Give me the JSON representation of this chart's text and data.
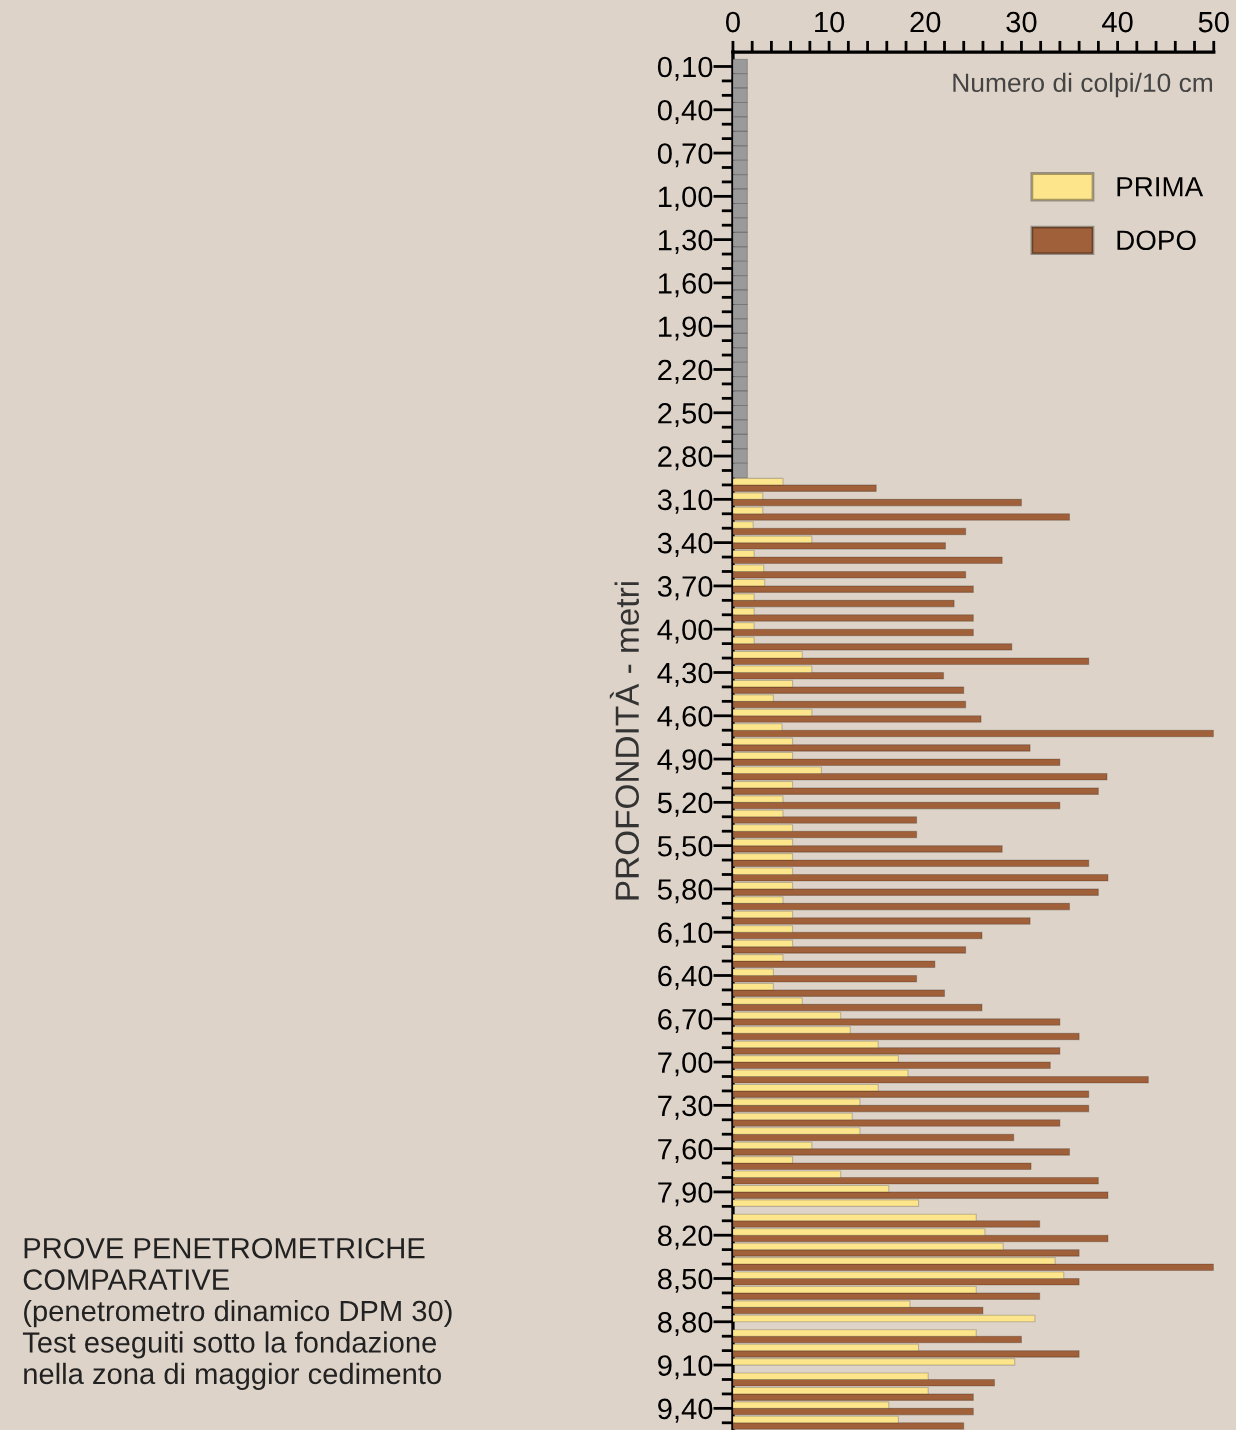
{
  "chart_data": {
    "type": "bar",
    "orientation": "horizontal",
    "xlabel": "Numero di colpi/10 cm",
    "ylabel": "PROFONDITÀ - metri",
    "categories": [
      "0,10",
      null,
      null,
      "0,40",
      null,
      null,
      "0,70",
      null,
      null,
      "1,00",
      null,
      null,
      "1,30",
      null,
      null,
      "1,60",
      null,
      null,
      "1,90",
      null,
      null,
      "2,20",
      null,
      null,
      "2,50",
      null,
      null,
      "2,80",
      null,
      null,
      "3,10",
      null,
      null,
      "3,40",
      null,
      null,
      "3,70",
      null,
      null,
      "4,00",
      null,
      null,
      "4,30",
      null,
      null,
      "4,60",
      null,
      null,
      "4,90",
      null,
      null,
      "5,20",
      null,
      null,
      "5,50",
      null,
      null,
      "5,80",
      null,
      null,
      "6,10",
      null,
      null,
      "6,40",
      null,
      null,
      "6,70",
      null,
      null,
      "7,00",
      null,
      null,
      "7,30",
      null,
      null,
      "7,60",
      null,
      null,
      "7,90",
      null,
      null,
      "8,20",
      null,
      null,
      "8,50",
      null,
      null,
      "8,80",
      null,
      null,
      "9,10",
      null,
      null,
      "9,40",
      null
    ],
    "series": [
      {
        "name": "PRIMA",
        "color": "#fde58c",
        "values": [
          null,
          null,
          null,
          null,
          null,
          null,
          null,
          null,
          null,
          null,
          null,
          null,
          null,
          null,
          null,
          null,
          null,
          null,
          null,
          null,
          null,
          null,
          null,
          null,
          null,
          null,
          null,
          null,
          null,
          5.2,
          3.1,
          3.1,
          2.1,
          8.2,
          2.2,
          3.2,
          3.3,
          2.2,
          2.2,
          2.2,
          2.2,
          7.2,
          8.2,
          6.2,
          4.2,
          8.2,
          5.1,
          6.2,
          6.2,
          9.2,
          6.2,
          5.2,
          5.2,
          6.2,
          6.2,
          6.2,
          6.2,
          6.2,
          5.2,
          6.2,
          6.2,
          6.2,
          5.2,
          4.2,
          4.2,
          7.2,
          11.2,
          12.2,
          15.1,
          17.2,
          18.2,
          15.1,
          13.2,
          12.4,
          13.2,
          8.2,
          6.2,
          11.2,
          16.2,
          19.3,
          25.3,
          26.2,
          28.1,
          33.5,
          34.4,
          25.3,
          18.4,
          31.4,
          25.3,
          19.3,
          29.3,
          20.3,
          20.3,
          16.2,
          17.2
        ]
      },
      {
        "name": "DOPO",
        "color": "#a0603a",
        "values": [
          null,
          null,
          null,
          null,
          null,
          null,
          null,
          null,
          null,
          null,
          null,
          null,
          null,
          null,
          null,
          null,
          null,
          null,
          null,
          null,
          null,
          null,
          null,
          null,
          null,
          null,
          null,
          null,
          null,
          14.9,
          30,
          35,
          24.2,
          22.1,
          28,
          24.2,
          25,
          23,
          25,
          25,
          29,
          37,
          21.9,
          24,
          24.2,
          25.8,
          50,
          30.9,
          34,
          38.9,
          38,
          34,
          19.1,
          19.1,
          28,
          37,
          39,
          38,
          35,
          30.9,
          25.9,
          24.2,
          21,
          19.1,
          22,
          25.9,
          34,
          36,
          34,
          33,
          43.2,
          37,
          37,
          34,
          29.2,
          35,
          31,
          38,
          39,
          null,
          31.9,
          39,
          36,
          50,
          36,
          31.9,
          26,
          null,
          30,
          36,
          null,
          27.2,
          25,
          25,
          24
        ]
      },
      {
        "color": "#9a9a9a",
        "values": [
          1.5,
          1.5,
          1.5,
          1.5,
          1.5,
          1.5,
          1.5,
          1.5,
          1.5,
          1.5,
          1.5,
          1.5,
          1.5,
          1.5,
          1.5,
          1.5,
          1.5,
          1.5,
          1.5,
          1.5,
          1.5,
          1.5,
          1.5,
          1.5,
          1.5,
          1.5,
          1.5,
          1.5,
          1.5,
          null,
          null,
          null,
          null,
          null,
          null,
          null,
          null,
          null,
          null,
          null,
          null,
          null,
          null,
          null,
          null,
          null,
          null,
          null,
          null,
          null,
          null,
          null,
          null,
          null,
          null,
          null,
          null,
          null,
          null,
          null,
          null,
          null,
          null,
          null,
          null,
          null,
          null,
          null,
          null,
          null,
          null,
          null,
          null,
          null,
          null,
          null,
          null,
          null,
          null,
          null,
          null,
          null,
          null,
          null,
          null,
          null,
          null,
          null,
          null,
          null,
          null,
          null,
          null,
          null,
          null
        ]
      }
    ],
    "xlim": [
      0,
      50
    ],
    "xticks": [
      0,
      {
        "value": 2,
        "label": null
      },
      {
        "value": 4,
        "label": null
      },
      {
        "value": 6,
        "label": null
      },
      {
        "value": 8,
        "label": null
      },
      10,
      {
        "value": 12,
        "label": null
      },
      {
        "value": 14,
        "label": null
      },
      {
        "value": 16,
        "label": null
      },
      {
        "value": 18,
        "label": null
      },
      20,
      {
        "value": 22,
        "label": null
      },
      {
        "value": 24,
        "label": null
      },
      {
        "value": 26,
        "label": null
      },
      {
        "value": 28,
        "label": null
      },
      30,
      {
        "value": 32,
        "label": null
      },
      {
        "value": 34,
        "label": null
      },
      {
        "value": 36,
        "label": null
      },
      {
        "value": 38,
        "label": null
      },
      40,
      {
        "value": 42,
        "label": null
      },
      {
        "value": 44,
        "label": null
      },
      {
        "value": 46,
        "label": null
      },
      {
        "value": 48,
        "label": null
      },
      50
    ],
    "grid": false,
    "legend": "top right",
    "annotations": [
      "PROVE PENETROMETRICHE\nCOMPARATIVE\n(penetrometro dinamico DPM 30)\nTest eseguiti sotto la fondazione\nnella zona di maggior cedimento"
    ]
  }
}
